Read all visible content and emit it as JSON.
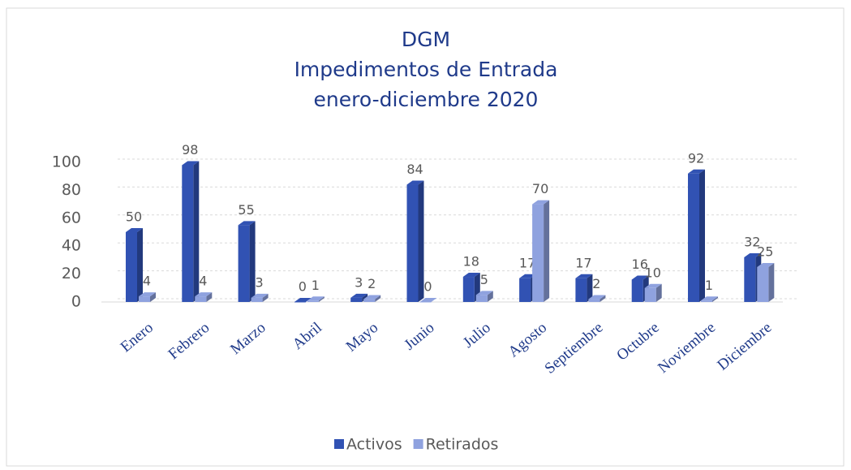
{
  "chart_data": {
    "type": "bar3d",
    "title": [
      "DGM",
      "Impedimentos de Entrada",
      "enero-diciembre 2020"
    ],
    "categories": [
      "Enero",
      "Febrero",
      "Marzo",
      "Abril",
      "Mayo",
      "Junio",
      "Julio",
      "Agosto",
      "Septiembre",
      "Octubre",
      "Noviembre",
      "Diciembre"
    ],
    "series": [
      {
        "name": "Activos",
        "color": "#3152b3",
        "values": [
          50,
          98,
          55,
          0,
          3,
          84,
          18,
          17,
          17,
          16,
          92,
          32
        ]
      },
      {
        "name": "Retirados",
        "color": "#8fa2df",
        "values": [
          4,
          4,
          3,
          1,
          2,
          0,
          5,
          70,
          2,
          10,
          1,
          25
        ]
      }
    ],
    "ylim": [
      0,
      100
    ],
    "yticks": [
      0,
      20,
      40,
      60,
      80,
      100
    ],
    "grid": true,
    "legend": "bottom"
  }
}
